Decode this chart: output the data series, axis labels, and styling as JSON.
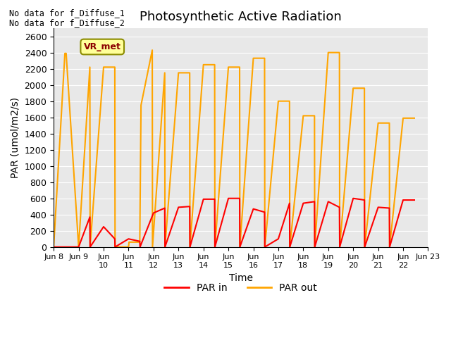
{
  "title": "Photosynthetic Active Radiation",
  "ylabel": "PAR (umol/m2/s)",
  "xlabel": "Time",
  "ylim": [
    0,
    2700
  ],
  "yticks": [
    0,
    200,
    400,
    600,
    800,
    1000,
    1200,
    1400,
    1600,
    1800,
    2000,
    2200,
    2400,
    2600
  ],
  "no_data_text_1": "No data for f_Diffuse_1",
  "no_data_text_2": "No data for f_Diffuse_2",
  "legend_label_box": "VR_met",
  "legend_box_facecolor": "#FFFF99",
  "legend_box_edgecolor": "#8B8B00",
  "legend_box_textcolor": "#8B0000",
  "background_color": "#E8E8E8",
  "par_in_color": "#FF0000",
  "par_out_color": "#FFA500",
  "par_in_label": "PAR in",
  "par_out_label": "PAR out",
  "x_start": 8,
  "x_end": 23,
  "xtick_positions": [
    8,
    9,
    10,
    11,
    12,
    13,
    14,
    15,
    16,
    17,
    18,
    19,
    20,
    21,
    22,
    23
  ],
  "xtick_labels": [
    "Jun 8",
    "Jun 9",
    "Jun\n10",
    "Jun\n11",
    "Jun\n12",
    "Jun\n13",
    "Jun\n14",
    "Jun\n15",
    "Jun\n16",
    "Jun\n17",
    "Jun\n18",
    "Jun\n19",
    "Jun\n20",
    "Jun\n21",
    "Jun\n22",
    "Jun 23"
  ],
  "par_out_x": [
    8.0,
    8.45,
    8.5,
    9.0,
    9.45,
    9.46,
    10.0,
    10.45,
    10.46,
    11.0,
    11.02,
    11.45,
    11.5,
    11.95,
    11.96,
    12.45,
    12.46,
    13.0,
    13.45,
    13.46,
    14.0,
    14.45,
    14.46,
    15.0,
    15.45,
    15.46,
    16.0,
    16.45,
    16.46,
    17.0,
    17.45,
    17.46,
    18.0,
    18.45,
    18.46,
    19.0,
    19.45,
    19.46,
    20.0,
    20.45,
    20.46,
    21.0,
    21.45,
    21.46,
    22.0,
    22.45
  ],
  "par_out_y": [
    0,
    2390,
    2390,
    0,
    2220,
    0,
    2220,
    2220,
    0,
    0,
    60,
    60,
    1750,
    2430,
    0,
    2150,
    0,
    2150,
    2150,
    0,
    2250,
    2250,
    0,
    2220,
    2220,
    0,
    2330,
    2330,
    0,
    1800,
    1800,
    0,
    1620,
    1620,
    0,
    2400,
    2400,
    0,
    1960,
    1960,
    0,
    1530,
    1530,
    0,
    1590,
    1590
  ],
  "par_in_x": [
    8.0,
    8.45,
    8.5,
    9.0,
    9.45,
    9.46,
    10.0,
    10.45,
    10.46,
    11.0,
    11.45,
    11.46,
    12.0,
    12.45,
    12.46,
    13.0,
    13.45,
    13.46,
    14.0,
    14.45,
    14.46,
    15.0,
    15.45,
    15.46,
    16.0,
    16.45,
    16.46,
    17.0,
    17.45,
    17.46,
    18.0,
    18.45,
    18.46,
    19.0,
    19.45,
    19.46,
    20.0,
    20.45,
    20.46,
    21.0,
    21.45,
    21.46,
    22.0,
    22.45
  ],
  "par_in_y": [
    0,
    0,
    0,
    0,
    370,
    0,
    250,
    100,
    0,
    100,
    70,
    0,
    420,
    480,
    0,
    490,
    500,
    0,
    590,
    590,
    0,
    600,
    600,
    0,
    470,
    430,
    0,
    100,
    540,
    0,
    540,
    560,
    0,
    560,
    490,
    0,
    600,
    580,
    0,
    490,
    480,
    0,
    580,
    580
  ]
}
